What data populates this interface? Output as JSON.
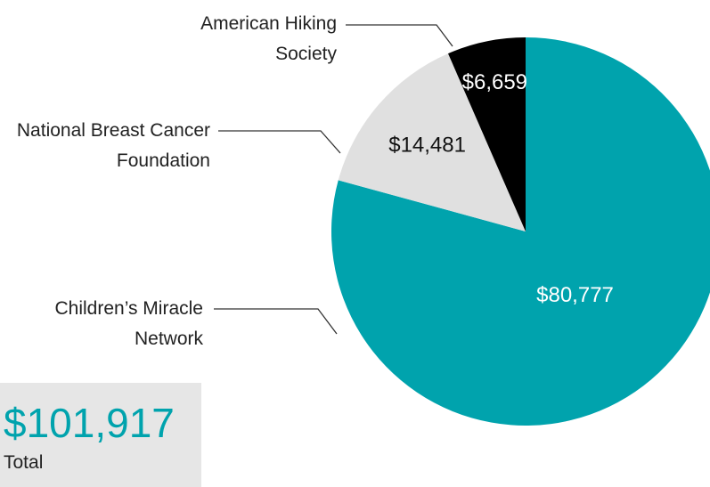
{
  "chart_data": {
    "type": "pie",
    "categories": [
      "Children’s Miracle Network",
      "National Breast Cancer Foundation",
      "American Hiking Society"
    ],
    "values": [
      80777,
      14481,
      6659
    ],
    "value_labels": [
      "$80,777",
      "$14,481",
      "$6,659"
    ],
    "colors": [
      "#00a3ad",
      "#e0e0e0",
      "#000000"
    ],
    "label_colors": [
      "#ffffff",
      "#111111",
      "#ffffff"
    ],
    "total_label": "$101,917",
    "total_caption": "Total"
  }
}
